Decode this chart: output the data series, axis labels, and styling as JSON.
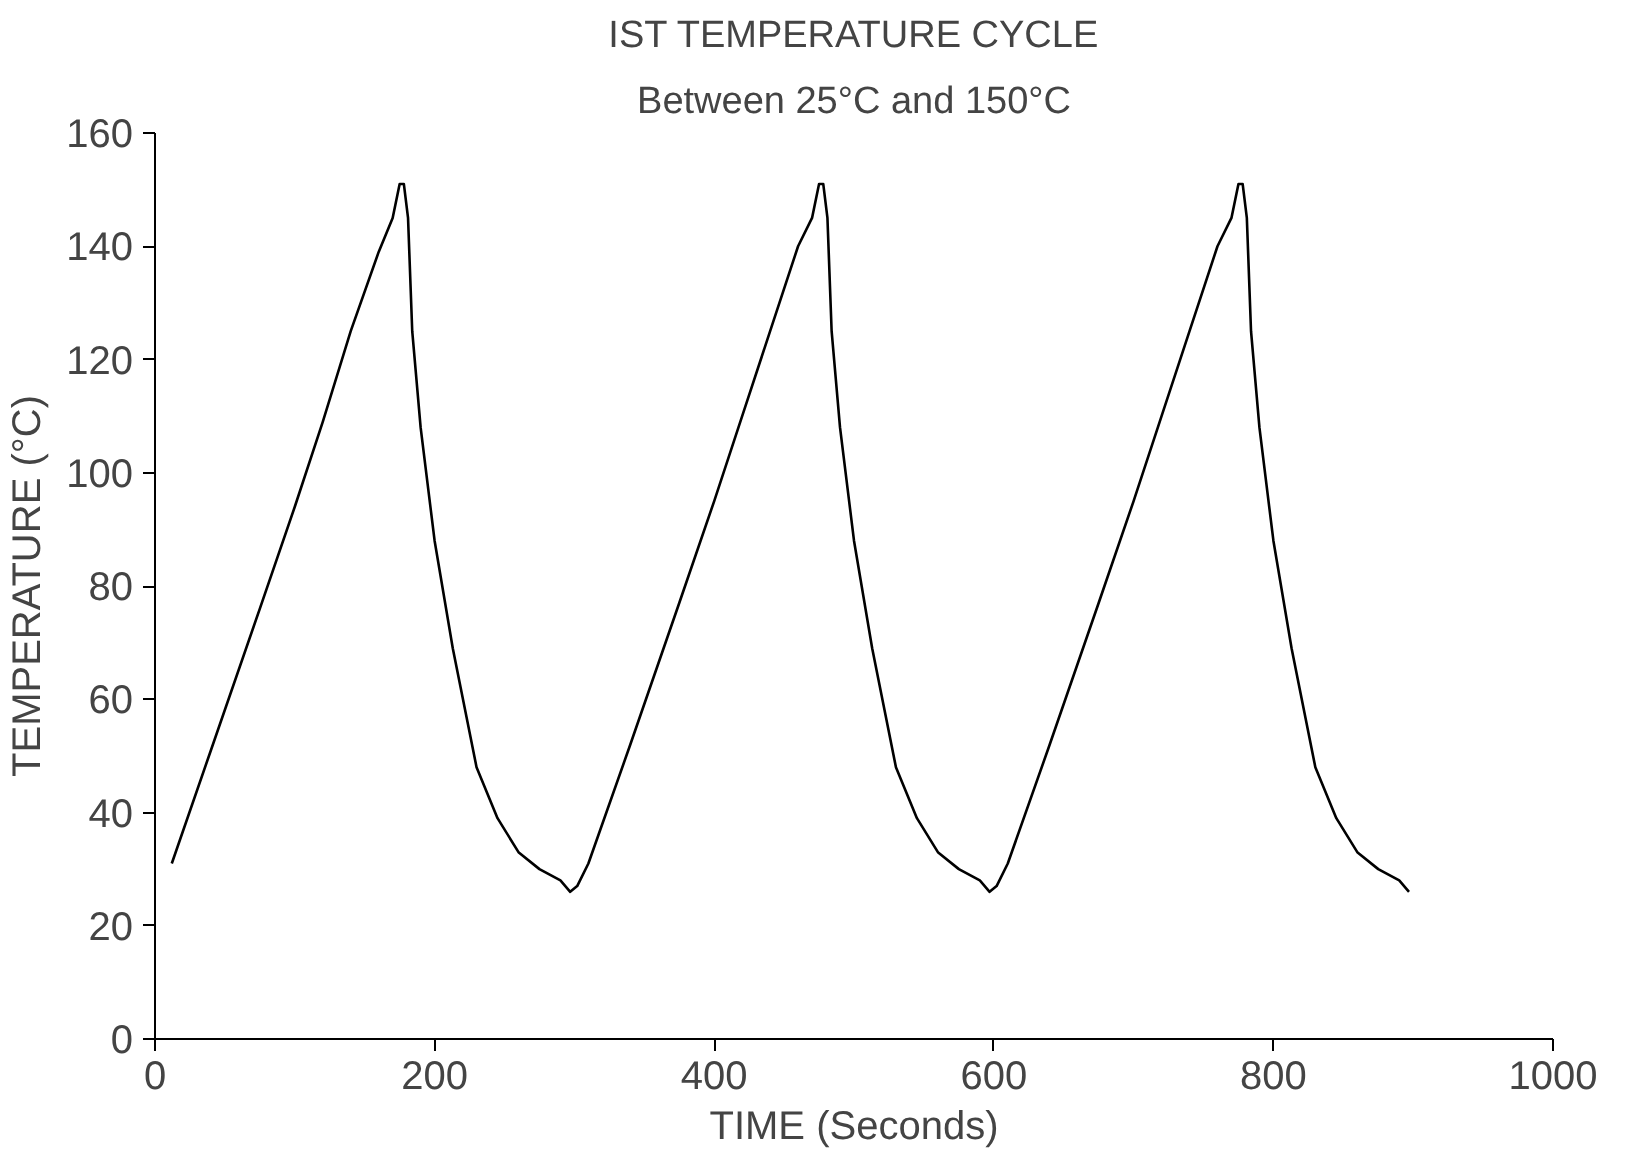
{
  "chart_data": {
    "type": "line",
    "title": "IST TEMPERATURE CYCLE",
    "subtitle": "Between 25°C and 150°C",
    "xlabel": "TIME (Seconds)",
    "ylabel": "TEMPERATURE (°C)",
    "xlim": [
      0,
      1000
    ],
    "xticks": [
      0,
      200,
      400,
      600,
      800,
      1000
    ],
    "ylim": [
      0,
      160
    ],
    "yticks": [
      0,
      20,
      40,
      60,
      80,
      100,
      120,
      140,
      160
    ],
    "grid": false,
    "marker": "none",
    "line_style": "solid",
    "series": [
      {
        "color": "#000000",
        "x": [
          12,
          40,
          75,
          100,
          120,
          140,
          160,
          170,
          175,
          178,
          181,
          184,
          190,
          200,
          213,
          230,
          245,
          260,
          275,
          290,
          297,
          302,
          310,
          340,
          375,
          400,
          420,
          440,
          460,
          470,
          475,
          478,
          481,
          484,
          490,
          500,
          513,
          530,
          545,
          560,
          575,
          590,
          597,
          602,
          610,
          640,
          675,
          700,
          720,
          740,
          760,
          770,
          775,
          778,
          781,
          784,
          790,
          800,
          813,
          830,
          845,
          860,
          875,
          890,
          897
        ],
        "values": [
          31,
          51,
          76,
          94,
          109,
          125,
          139,
          145,
          151,
          151,
          145,
          125,
          108,
          88,
          69,
          48,
          39,
          33,
          30,
          28,
          26,
          27,
          31,
          52,
          77,
          95,
          110,
          125,
          140,
          145,
          151,
          151,
          145,
          125,
          108,
          88,
          69,
          48,
          39,
          33,
          30,
          28,
          26,
          27,
          31,
          52,
          77,
          95,
          110,
          125,
          140,
          145,
          151,
          151,
          145,
          125,
          108,
          88,
          69,
          48,
          39,
          33,
          30,
          28,
          26
        ]
      }
    ]
  }
}
